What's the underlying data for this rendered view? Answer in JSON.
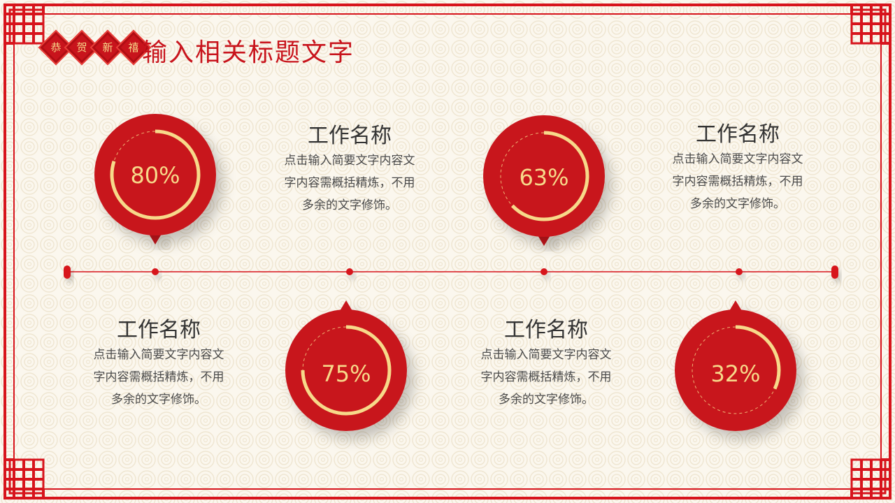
{
  "header": {
    "badges": [
      "恭",
      "贺",
      "新",
      "禧"
    ],
    "title": "输入相关标题文字"
  },
  "colors": {
    "red": "#c8141c",
    "gold": "#f7d98a",
    "background": "#fbf7ee"
  },
  "items": [
    {
      "percent": "80%",
      "value": 80,
      "title": "工作名称",
      "lines": [
        "点击输入简要文字内容文",
        "字内容需概括精炼，不用",
        "多余的文字修饰。"
      ]
    },
    {
      "percent": "63%",
      "value": 63,
      "title": "工作名称",
      "lines": [
        "点击输入简要文字内容文",
        "字内容需概括精炼，不用",
        "多余的文字修饰。"
      ]
    },
    {
      "percent": "75%",
      "value": 75,
      "title": "工作名称",
      "lines": [
        "点击输入简要文字内容文",
        "字内容需概括精炼，不用",
        "多余的文字修饰。"
      ]
    },
    {
      "percent": "32%",
      "value": 32,
      "title": "工作名称",
      "lines": [
        "点击输入简要文字内容文",
        "字内容需概括精炼，不用",
        "多余的文字修饰。"
      ]
    }
  ]
}
